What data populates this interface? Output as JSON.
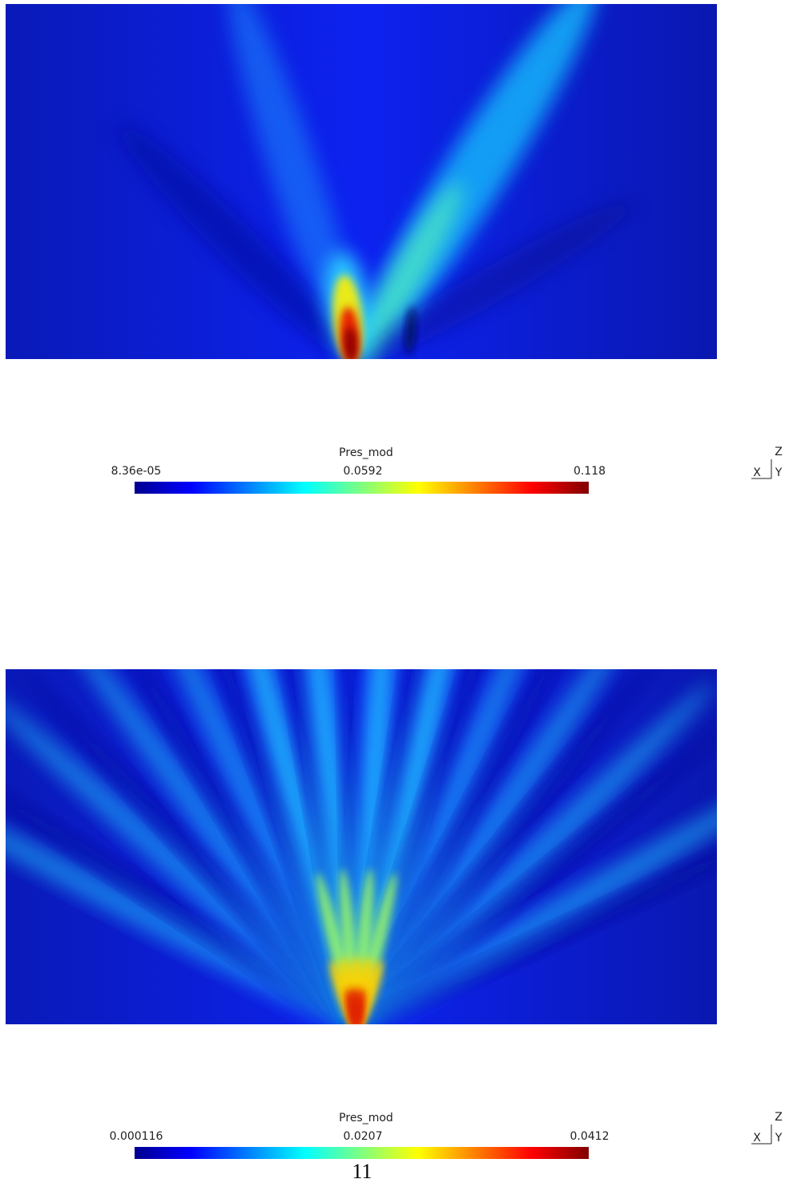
{
  "figures": [
    {
      "colorbar": {
        "title": "Pres_mod",
        "labels": [
          "8.36e-05",
          "0.0592",
          "0.118"
        ]
      },
      "axes": {
        "z": "Z",
        "x": "X",
        "y": "Y"
      }
    },
    {
      "colorbar": {
        "title": "Pres_mod",
        "labels": [
          "0.000116",
          "0.0207",
          "0.0412"
        ]
      },
      "axes": {
        "z": "Z",
        "x": "X",
        "y": "Y"
      }
    }
  ],
  "page_number": "11"
}
